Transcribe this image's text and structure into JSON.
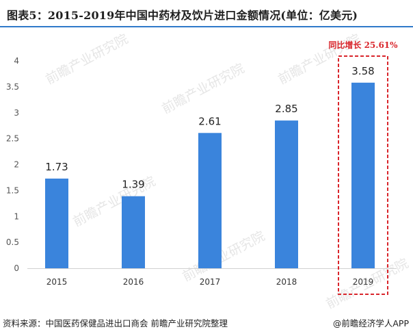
{
  "title": "图表5：2015-2019年中国中药材及饮片进口金额情况(单位：亿美元)",
  "chart_data": {
    "type": "bar",
    "categories": [
      "2015",
      "2016",
      "2017",
      "2018",
      "2019"
    ],
    "values": [
      1.73,
      1.39,
      2.61,
      2.85,
      3.58
    ],
    "data_labels": [
      "1.73",
      "1.39",
      "2.61",
      "2.85",
      "3.58"
    ],
    "yticks": [
      "0",
      "0.5",
      "1",
      "1.5",
      "2",
      "2.5",
      "3",
      "3.5",
      "4"
    ],
    "ylim": [
      0,
      4
    ],
    "grid": false,
    "bar_color": "#3a84dc",
    "highlight": {
      "category": "2019",
      "text": "同比增长 25.61%",
      "color": "#d9252b"
    }
  },
  "watermark": "前瞻产业研究院",
  "footer": {
    "source": "资料来源：中国医药保健品进出口商会 前瞻产业研究院整理",
    "brand": "@前瞻经济学人APP"
  }
}
